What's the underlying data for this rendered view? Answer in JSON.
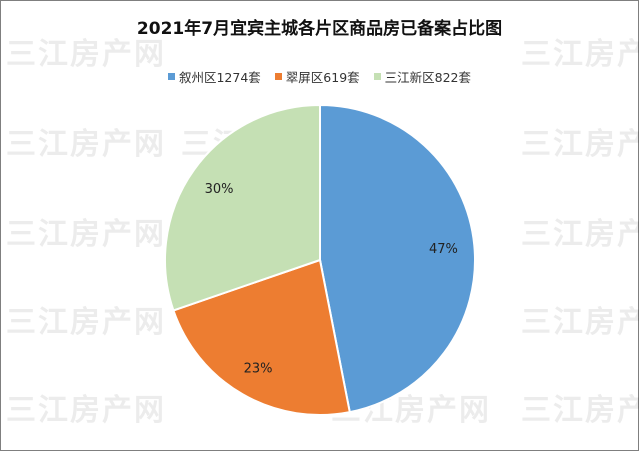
{
  "watermark": {
    "text": "三江房产网"
  },
  "chart_data": {
    "type": "pie",
    "title": "2021年7月宜宾主城各片区商品房已备案占比图",
    "legend_position": "top",
    "slices": [
      {
        "legend": "叙州区1274套",
        "value": 1274,
        "percent_label": "47%",
        "color": "#5b9bd5"
      },
      {
        "legend": "翠屏区619套",
        "value": 619,
        "percent_label": "23%",
        "color": "#ed7d31"
      },
      {
        "legend": "三江新区822套",
        "value": 822,
        "percent_label": "30%",
        "color": "#c5e0b4"
      }
    ]
  }
}
